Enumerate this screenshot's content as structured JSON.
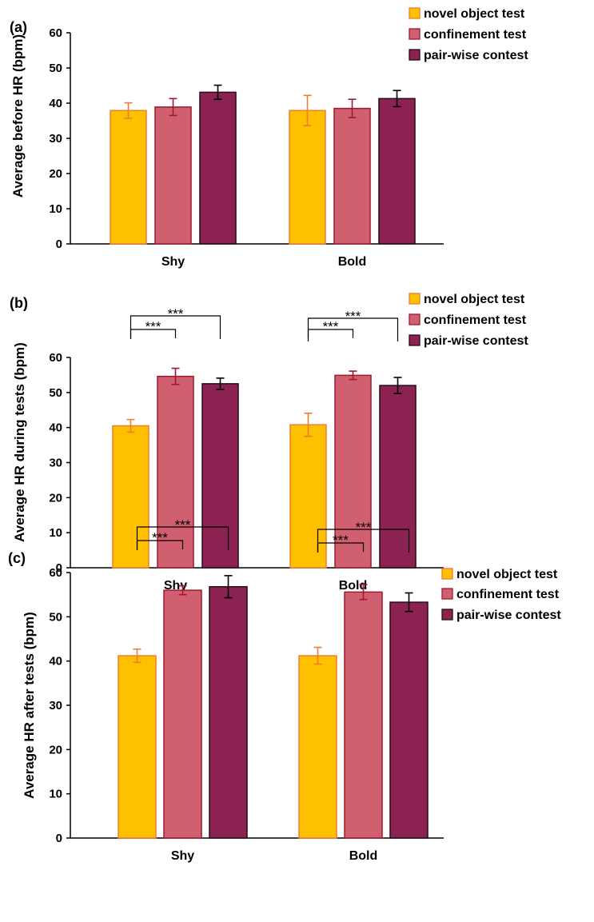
{
  "chart_data": [
    {
      "type": "bar",
      "panel_label": "(a)",
      "ylabel": "Average before HR (bpm)",
      "categories": [
        "Shy",
        "Bold"
      ],
      "ylim": [
        0,
        60
      ],
      "yticks": [
        0,
        10,
        20,
        30,
        40,
        50,
        60
      ],
      "series": [
        {
          "name": "novel object test",
          "values": [
            37.9,
            37.9
          ],
          "errors": [
            2.2,
            4.3
          ]
        },
        {
          "name": "confinement test",
          "values": [
            38.9,
            38.5
          ],
          "errors": [
            2.4,
            2.6
          ]
        },
        {
          "name": "pair-wise contest",
          "values": [
            43.1,
            41.3
          ],
          "errors": [
            2.0,
            2.3
          ]
        }
      ],
      "significance": [],
      "legend_position": "top-right"
    },
    {
      "type": "bar",
      "panel_label": "(b)",
      "ylabel": "Average HR during tests (bpm)",
      "categories": [
        "Shy",
        "Bold"
      ],
      "ylim": [
        0,
        60
      ],
      "yticks": [
        0,
        10,
        20,
        30,
        40,
        50,
        60
      ],
      "series": [
        {
          "name": "novel object test",
          "values": [
            40.5,
            40.8
          ],
          "errors": [
            1.8,
            3.3
          ]
        },
        {
          "name": "confinement test",
          "values": [
            54.6,
            54.9
          ],
          "errors": [
            2.3,
            1.2
          ]
        },
        {
          "name": "pair-wise contest",
          "values": [
            52.5,
            52.0
          ],
          "errors": [
            1.6,
            2.3
          ]
        }
      ],
      "significance": [
        {
          "category": 0,
          "from": 0,
          "to": 1,
          "label": "***"
        },
        {
          "category": 0,
          "from": 0,
          "to": 2,
          "label": "***"
        },
        {
          "category": 1,
          "from": 0,
          "to": 1,
          "label": "***"
        },
        {
          "category": 1,
          "from": 0,
          "to": 2,
          "label": "***"
        }
      ],
      "legend_position": "top-right"
    },
    {
      "type": "bar",
      "panel_label": "(c)",
      "ylabel": "Average HR after tests (bpm)",
      "categories": [
        "Shy",
        "Bold"
      ],
      "ylim": [
        0,
        60
      ],
      "yticks": [
        0,
        10,
        20,
        30,
        40,
        50,
        60
      ],
      "series": [
        {
          "name": "novel object test",
          "values": [
            41.2,
            41.2
          ],
          "errors": [
            1.5,
            1.9
          ]
        },
        {
          "name": "confinement test",
          "values": [
            56.0,
            55.6
          ],
          "errors": [
            1.0,
            1.7
          ]
        },
        {
          "name": "pair-wise contest",
          "values": [
            56.8,
            53.3
          ],
          "errors": [
            2.5,
            2.1
          ]
        }
      ],
      "significance": [
        {
          "category": 0,
          "from": 0,
          "to": 1,
          "label": "***"
        },
        {
          "category": 0,
          "from": 0,
          "to": 2,
          "label": "***"
        },
        {
          "category": 1,
          "from": 0,
          "to": 1,
          "label": "***"
        },
        {
          "category": 1,
          "from": 0,
          "to": 2,
          "label": "***"
        }
      ],
      "legend_position": "top-right"
    }
  ],
  "colors": {
    "series_fill": [
      "#FFC000",
      "#D06070",
      "#8B2252"
    ],
    "series_stroke": [
      "#ED7D31",
      "#A01830",
      "#2A0A18"
    ],
    "error_bar": [
      "#ED7D31",
      "#A01830",
      "#000000"
    ]
  }
}
